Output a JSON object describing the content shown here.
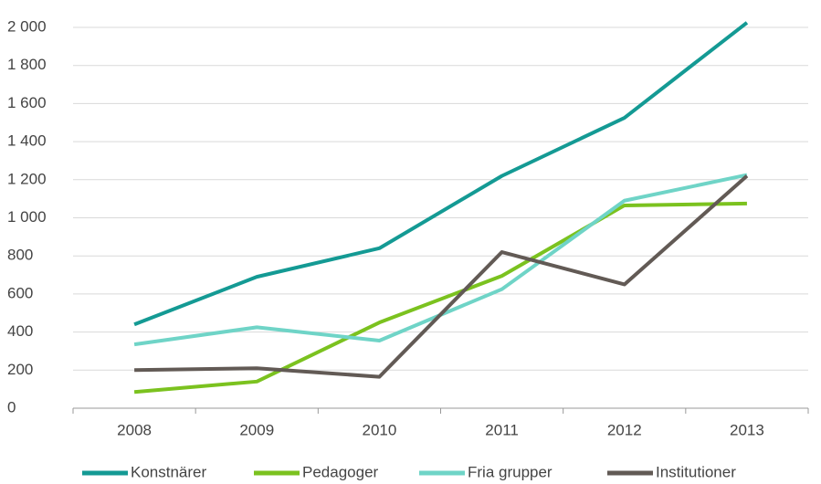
{
  "chart_data": {
    "type": "line",
    "categories": [
      "2008",
      "2009",
      "2010",
      "2011",
      "2012",
      "2013"
    ],
    "series": [
      {
        "name": "Konstnärer",
        "color": "#149a94",
        "values": [
          440,
          690,
          840,
          1220,
          1525,
          2025
        ]
      },
      {
        "name": "Pedagoger",
        "color": "#7bc21f",
        "values": [
          85,
          140,
          450,
          695,
          1065,
          1075
        ]
      },
      {
        "name": "Fria grupper",
        "color": "#6fd4c7",
        "values": [
          335,
          425,
          355,
          625,
          1090,
          1225
        ]
      },
      {
        "name": "Institutioner",
        "color": "#625a55",
        "values": [
          200,
          210,
          165,
          820,
          650,
          1220
        ]
      }
    ],
    "ylim": [
      0,
      2000
    ],
    "yticks": [
      0,
      200,
      400,
      600,
      800,
      {
        "value": 1000,
        "label": "1 000"
      },
      {
        "value": 1200,
        "label": "1 200"
      },
      {
        "value": 1400,
        "label": "1 400"
      },
      {
        "value": 1600,
        "label": "1 600"
      },
      {
        "value": 1800,
        "label": "1 800"
      },
      {
        "value": 2000,
        "label": "2 000"
      }
    ],
    "grid": true,
    "legend": "bottom"
  }
}
